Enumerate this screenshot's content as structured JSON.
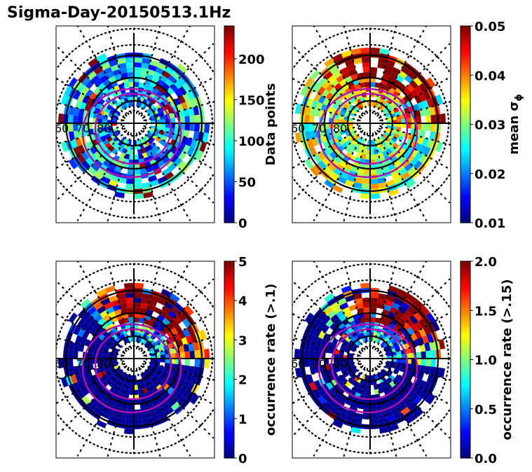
{
  "chart_data": {
    "type": "heatmap",
    "title": "Sigma-Day-20150513.1Hz",
    "panels": [
      {
        "id": "data-points",
        "colorbar_label": "Data points",
        "vmin": 0,
        "vmax": 240,
        "ticks": [
          "0",
          "50",
          "100",
          "150",
          "200"
        ],
        "tick_values": [
          0,
          50,
          100,
          150,
          200
        ],
        "typical_level": 0.3,
        "east_bias": 0.0
      },
      {
        "id": "mean-sigma",
        "colorbar_label": "mean σ",
        "colorbar_sub": "ϕ",
        "vmin": 0.01,
        "vmax": 0.05,
        "ticks": [
          "0.01",
          "0.02",
          "0.03",
          "0.04",
          "0.05"
        ],
        "tick_values": [
          0.01,
          0.02,
          0.03,
          0.04,
          0.05
        ],
        "typical_level": 0.5,
        "east_bias": 0.5
      },
      {
        "id": "occurrence-01",
        "colorbar_label": "occurrence rate (>.1)",
        "vmin": 0,
        "vmax": 5,
        "ticks": [
          "0",
          "1",
          "2",
          "3",
          "4",
          "5"
        ],
        "tick_values": [
          0,
          1,
          2,
          3,
          4,
          5
        ],
        "typical_level": 0.05,
        "east_bias": 0.9
      },
      {
        "id": "occurrence-015",
        "colorbar_label": "occurrence rate (>.15)",
        "vmin": 0,
        "vmax": 2,
        "ticks": [
          "0.0",
          "0.5",
          "1.0",
          "1.5",
          "2.0"
        ],
        "tick_values": [
          0,
          0.5,
          1,
          1.5,
          2
        ],
        "typical_level": 0.05,
        "east_bias": 0.9
      }
    ],
    "latitude_labels": [
      "60",
      "70",
      "80"
    ],
    "grid": true
  }
}
